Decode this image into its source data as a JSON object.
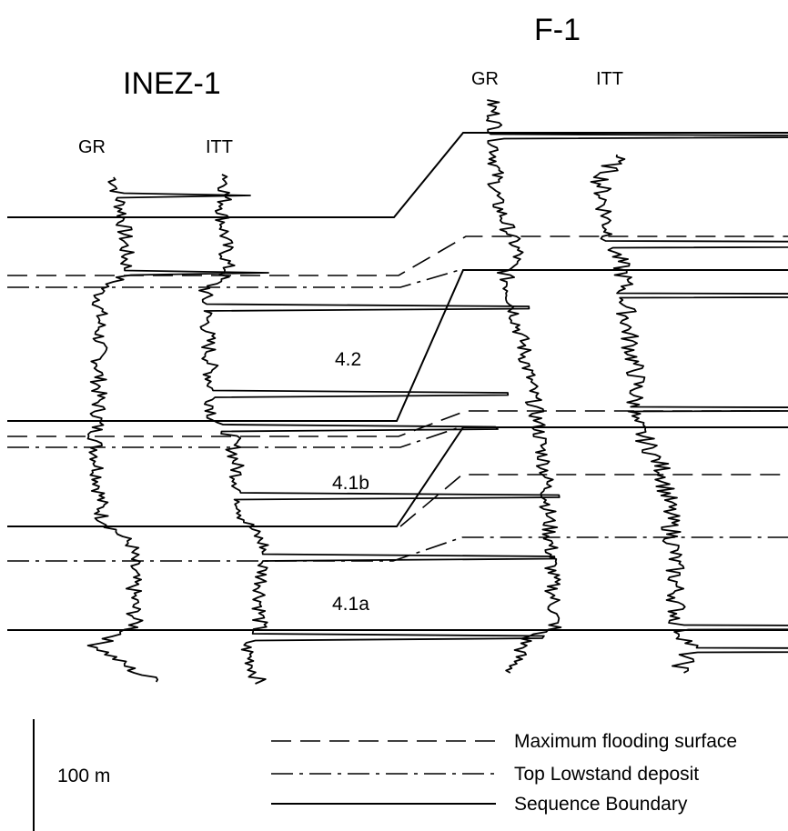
{
  "wells": [
    {
      "name": "INEZ-1",
      "logs": [
        "GR",
        "ITT"
      ]
    },
    {
      "name": "F-1",
      "logs": [
        "GR",
        "ITT"
      ]
    }
  ],
  "sequences": [
    "4.2",
    "4.1b",
    "4.1a"
  ],
  "scale_bar": {
    "label": "100 m"
  },
  "legend": [
    {
      "label": "Maximum flooding surface",
      "style": "dashed"
    },
    {
      "label": "Top Lowstand deposit",
      "style": "dash-dot"
    },
    {
      "label": "Sequence Boundary",
      "style": "solid"
    }
  ]
}
